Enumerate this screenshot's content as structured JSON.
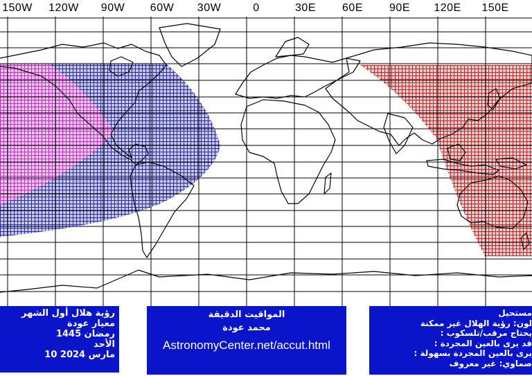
{
  "longitude_labels": [
    "150W",
    "120W",
    "90W",
    "60W",
    "30W",
    "0",
    "30E",
    "60E",
    "90E",
    "120E",
    "150E"
  ],
  "colors": {
    "magenta_zone": "#d23cd2",
    "blue_zone": "#2a2ab4",
    "red_zone": "#c83232",
    "panel_blue": "#0a14c8",
    "grid": "#000000"
  },
  "map_legend_zones": [
    "magenta-easy-naked-eye",
    "blue-naked-eye",
    "red-not-possible"
  ],
  "left_panel": {
    "lines": [
      "رؤية هلال أول الشهر",
      "معيار عودة",
      "رمضان 1445",
      "الأحد",
      "10 مارس 2024"
    ]
  },
  "center_panel": {
    "line1": "المواقيت الدقيقة",
    "line2": "محمد عودة",
    "url": "AstronomyCenter.net/accut.html"
  },
  "right_panel": {
    "lines": [
      "مستحيل",
      "لون: رؤية الهلال غير ممكنة",
      ": يحتاج مرقب/تلسكوب",
      ": قد يرى بالعين المجردة",
      ": يرى بالعين المجردة بسهولة",
      "صماوي: غير معروف"
    ]
  }
}
